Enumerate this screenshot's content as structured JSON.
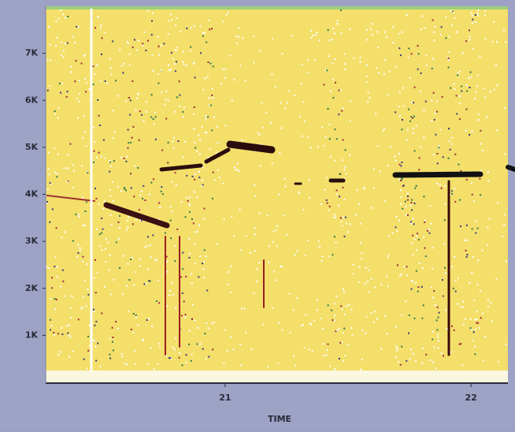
{
  "chart_data": {
    "type": "spectrogram",
    "xlabel": "TIME",
    "xlim": [
      20.27,
      22.15
    ],
    "xticks": [
      21,
      22
    ],
    "ylim": [
      0,
      8000
    ],
    "yticks": [
      {
        "value": 1000,
        "label": "1K"
      },
      {
        "value": 2000,
        "label": "2K"
      },
      {
        "value": 3000,
        "label": "3K"
      },
      {
        "value": 4000,
        "label": "4K"
      },
      {
        "value": 5000,
        "label": "5K"
      },
      {
        "value": 6000,
        "label": "6K"
      },
      {
        "value": 7000,
        "label": "7K"
      }
    ]
  }
}
